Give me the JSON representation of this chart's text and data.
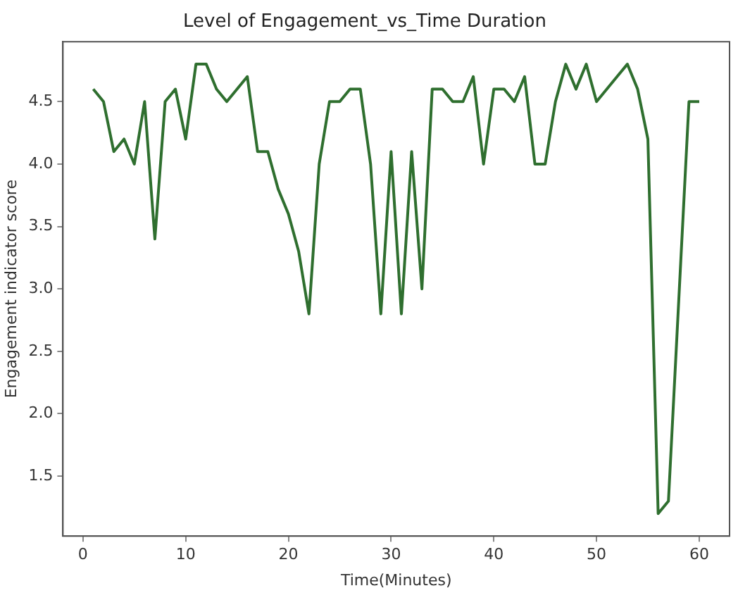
{
  "chart_data": {
    "type": "line",
    "title": "Level of Engagement_vs_Time Duration",
    "xlabel": "Time(Minutes)",
    "ylabel": "Engagement indicator score",
    "x": [
      1,
      2,
      3,
      4,
      5,
      6,
      7,
      8,
      9,
      10,
      11,
      12,
      13,
      14,
      15,
      16,
      17,
      18,
      19,
      20,
      21,
      22,
      23,
      24,
      25,
      26,
      27,
      28,
      29,
      30,
      31,
      32,
      33,
      34,
      35,
      36,
      37,
      38,
      39,
      40,
      41,
      42,
      43,
      44,
      45,
      46,
      47,
      48,
      49,
      50,
      51,
      52,
      53,
      54,
      55,
      56,
      57,
      58,
      59,
      60
    ],
    "series": [
      {
        "color": "#2f6f2f",
        "values": [
          4.6,
          4.5,
          4.1,
          4.2,
          4.0,
          4.5,
          3.4,
          4.5,
          4.6,
          4.2,
          4.8,
          4.8,
          4.6,
          4.5,
          4.6,
          4.7,
          4.1,
          4.1,
          3.8,
          3.6,
          3.3,
          2.8,
          4.0,
          4.5,
          4.5,
          4.6,
          4.6,
          4.0,
          2.8,
          4.1,
          2.8,
          4.1,
          3.0,
          4.6,
          4.6,
          4.5,
          4.5,
          4.7,
          4.0,
          4.6,
          4.6,
          4.5,
          4.7,
          4.0,
          4.0,
          4.5,
          4.8,
          4.6,
          4.8,
          4.5,
          4.6,
          4.7,
          4.8,
          4.6,
          4.2,
          1.2,
          1.3,
          2.9,
          4.5,
          4.5
        ]
      }
    ],
    "xlim": [
      -1.95,
      62.95
    ],
    "ylim": [
      1.02,
      4.98
    ],
    "xticks": [
      0,
      10,
      20,
      30,
      40,
      50,
      60
    ],
    "yticks": [
      1.5,
      {
        "value": 2,
        "label": "2.0"
      },
      2.5,
      {
        "value": 3,
        "label": "3.0"
      },
      3.5,
      {
        "value": 4,
        "label": "4.0"
      },
      4.5
    ],
    "grid": false,
    "legend": false,
    "marker": "none",
    "line_style": "solid"
  }
}
